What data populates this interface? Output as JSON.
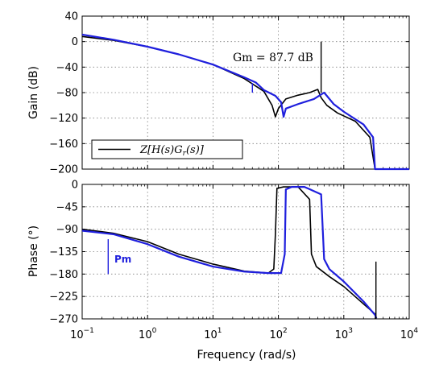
{
  "chart_data": {
    "type": "line",
    "figure": "bode",
    "xlabel": "Frequency  (rad/s)",
    "xscale": "log",
    "xlim": [
      0.1,
      10000
    ],
    "x_ticks": [
      {
        "value": 0.1,
        "base": "10",
        "exp": "−1"
      },
      {
        "value": 1,
        "base": "10",
        "exp": "0"
      },
      {
        "value": 10,
        "base": "10",
        "exp": "1"
      },
      {
        "value": 100,
        "base": "10",
        "exp": "2"
      },
      {
        "value": 1000,
        "base": "10",
        "exp": "3"
      },
      {
        "value": 10000,
        "base": "10",
        "exp": "4"
      }
    ],
    "grid": true,
    "colors": {
      "black_series": "#000000",
      "blue_series": "#1f1fdd",
      "grid": "#7f7f7f"
    },
    "gain_panel": {
      "ylabel": "Gain (dB)",
      "ylim": [
        -200,
        40
      ],
      "yticks": [
        40,
        0,
        -40,
        -80,
        -120,
        -160,
        -200
      ],
      "ytick_labels": [
        "40",
        "0",
        "−40",
        "−80",
        "−120",
        "−160",
        "−200"
      ],
      "annotation": "Gm = 87.7 dB",
      "legend": {
        "label": "Z[H(s)G_r(s)]",
        "placement": "bottom-left"
      },
      "series": [
        {
          "name": "Z[H(s)G_r(s)]",
          "color": "black",
          "points": [
            [
              0.1,
              8
            ],
            [
              0.3,
              2
            ],
            [
              1,
              -8
            ],
            [
              3,
              -20
            ],
            [
              10,
              -36
            ],
            [
              30,
              -58
            ],
            [
              60,
              -78
            ],
            [
              80,
              -100
            ],
            [
              90,
              -118
            ],
            [
              100,
              -105
            ],
            [
              130,
              -90
            ],
            [
              200,
              -84
            ],
            [
              300,
              -80
            ],
            [
              400,
              -75
            ],
            [
              450,
              -88
            ],
            [
              550,
              -100
            ],
            [
              800,
              -112
            ],
            [
              1500,
              -125
            ],
            [
              2500,
              -150
            ],
            [
              3000,
              -200
            ],
            [
              10000,
              -200
            ]
          ]
        },
        {
          "name": "",
          "color": "blue",
          "points": [
            [
              0.1,
              11
            ],
            [
              0.3,
              3
            ],
            [
              1,
              -8
            ],
            [
              3,
              -20
            ],
            [
              10,
              -36
            ],
            [
              30,
              -56
            ],
            [
              45,
              -64
            ],
            [
              60,
              -76
            ],
            [
              90,
              -85
            ],
            [
              110,
              -95
            ],
            [
              120,
              -118
            ],
            [
              130,
              -105
            ],
            [
              200,
              -98
            ],
            [
              350,
              -90
            ],
            [
              500,
              -80
            ],
            [
              560,
              -86
            ],
            [
              700,
              -98
            ],
            [
              1000,
              -110
            ],
            [
              2000,
              -130
            ],
            [
              2800,
              -150
            ],
            [
              3000,
              -200
            ],
            [
              10000,
              -200
            ]
          ]
        }
      ],
      "markers": [
        {
          "color": "blue",
          "x": 40,
          "y_from": -80,
          "y_to": -65
        },
        {
          "color": "black",
          "x": 450,
          "y_from": -80,
          "y_to": 0
        }
      ]
    },
    "phase_panel": {
      "ylabel": "Phase (°)",
      "ylim": [
        -270,
        0
      ],
      "yticks": [
        0,
        -45,
        -90,
        -135,
        -180,
        -225,
        -270
      ],
      "ytick_labels": [
        "0",
        "−45",
        "−90",
        "−135",
        "−180",
        "−225",
        "−270"
      ],
      "annotation": "Pm",
      "series": [
        {
          "name": "Z[H(s)G_r(s)]",
          "color": "black",
          "points": [
            [
              0.1,
              -90
            ],
            [
              0.3,
              -98
            ],
            [
              1,
              -115
            ],
            [
              3,
              -140
            ],
            [
              10,
              -160
            ],
            [
              30,
              -174
            ],
            [
              70,
              -178
            ],
            [
              85,
              -170
            ],
            [
              90,
              -100
            ],
            [
              95,
              -8
            ],
            [
              120,
              -5
            ],
            [
              200,
              -5
            ],
            [
              300,
              -30
            ],
            [
              320,
              -140
            ],
            [
              380,
              -165
            ],
            [
              600,
              -185
            ],
            [
              1000,
              -205
            ],
            [
              2000,
              -240
            ],
            [
              3000,
              -260
            ],
            [
              3100,
              -269
            ]
          ]
        },
        {
          "name": "",
          "color": "blue",
          "points": [
            [
              0.1,
              -93
            ],
            [
              0.3,
              -100
            ],
            [
              1,
              -120
            ],
            [
              3,
              -145
            ],
            [
              10,
              -165
            ],
            [
              30,
              -175
            ],
            [
              70,
              -178
            ],
            [
              110,
              -178
            ],
            [
              125,
              -140
            ],
            [
              130,
              -10
            ],
            [
              160,
              -5
            ],
            [
              250,
              -5
            ],
            [
              450,
              -20
            ],
            [
              500,
              -150
            ],
            [
              600,
              -170
            ],
            [
              1000,
              -195
            ],
            [
              2000,
              -235
            ],
            [
              3000,
              -262
            ],
            [
              3150,
              -269
            ]
          ]
        }
      ],
      "markers": [
        {
          "color": "blue",
          "x": 0.25,
          "y_from": -180,
          "y_to": -110
        },
        {
          "color": "black",
          "x": 3100,
          "y_from": -270,
          "y_to": -155
        }
      ]
    }
  }
}
